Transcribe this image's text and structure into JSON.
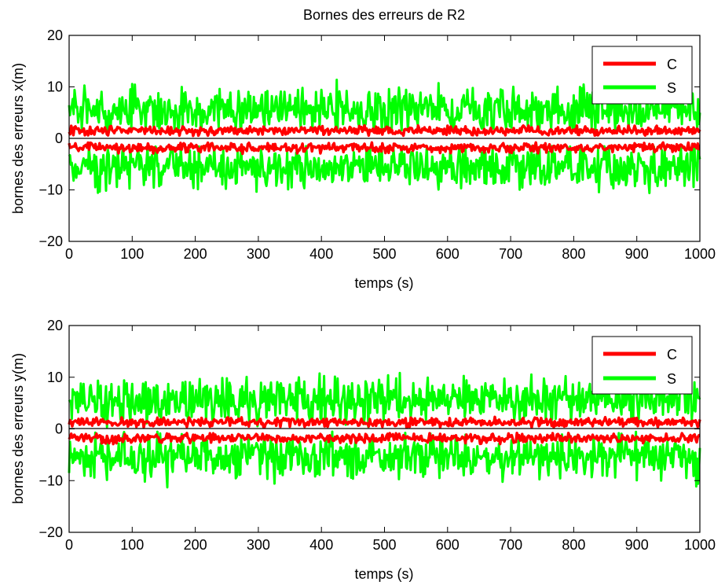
{
  "chart_data": [
    {
      "type": "line",
      "title": "Bornes des erreurs de R2",
      "xlabel": "temps (s)",
      "ylabel": "bornes des erreurs x(m)",
      "xlim": [
        0,
        1000
      ],
      "ylim": [
        -20,
        20
      ],
      "xticks": [
        "0",
        "100",
        "200",
        "300",
        "400",
        "500",
        "600",
        "700",
        "800",
        "900",
        "1000"
      ],
      "yticks": [
        "20",
        "10",
        "0",
        "−10",
        "−20"
      ],
      "legend": {
        "position": "top-right",
        "entries": [
          "C",
          "S"
        ]
      },
      "colors": {
        "C": "#ff0000",
        "S": "#00ff00"
      },
      "series": [
        {
          "name": "C",
          "bound": "upper",
          "approx_mean": 1.5,
          "approx_range": [
            0.5,
            2.5
          ]
        },
        {
          "name": "C",
          "bound": "lower",
          "approx_mean": -1.8,
          "approx_range": [
            -3,
            -0.8
          ]
        },
        {
          "name": "S",
          "bound": "upper",
          "approx_mean": 5.5,
          "approx_range": [
            1.5,
            14.3
          ]
        },
        {
          "name": "S",
          "bound": "lower",
          "approx_mean": -5.5,
          "approx_range": [
            -14.3,
            -1.5
          ]
        }
      ]
    },
    {
      "type": "line",
      "title": "",
      "xlabel": "temps (s)",
      "ylabel": "bornes des erreurs y(m)",
      "xlim": [
        0,
        1000
      ],
      "ylim": [
        -20,
        20
      ],
      "xticks": [
        "0",
        "100",
        "200",
        "300",
        "400",
        "500",
        "600",
        "700",
        "800",
        "900",
        "1000"
      ],
      "yticks": [
        "20",
        "10",
        "0",
        "−10",
        "−20"
      ],
      "legend": {
        "position": "top-right",
        "entries": [
          "C",
          "S"
        ]
      },
      "colors": {
        "C": "#ff0000",
        "S": "#00ff00"
      },
      "series": [
        {
          "name": "C",
          "bound": "upper",
          "approx_mean": 1.3,
          "approx_range": [
            0.3,
            2.5
          ]
        },
        {
          "name": "C",
          "bound": "lower",
          "approx_mean": -1.8,
          "approx_range": [
            -3,
            -0.8
          ]
        },
        {
          "name": "S",
          "bound": "upper",
          "approx_mean": 5.5,
          "approx_range": [
            0,
            12.2
          ]
        },
        {
          "name": "S",
          "bound": "lower",
          "approx_mean": -5.5,
          "approx_range": [
            -13.5,
            -0.5
          ]
        }
      ]
    }
  ]
}
